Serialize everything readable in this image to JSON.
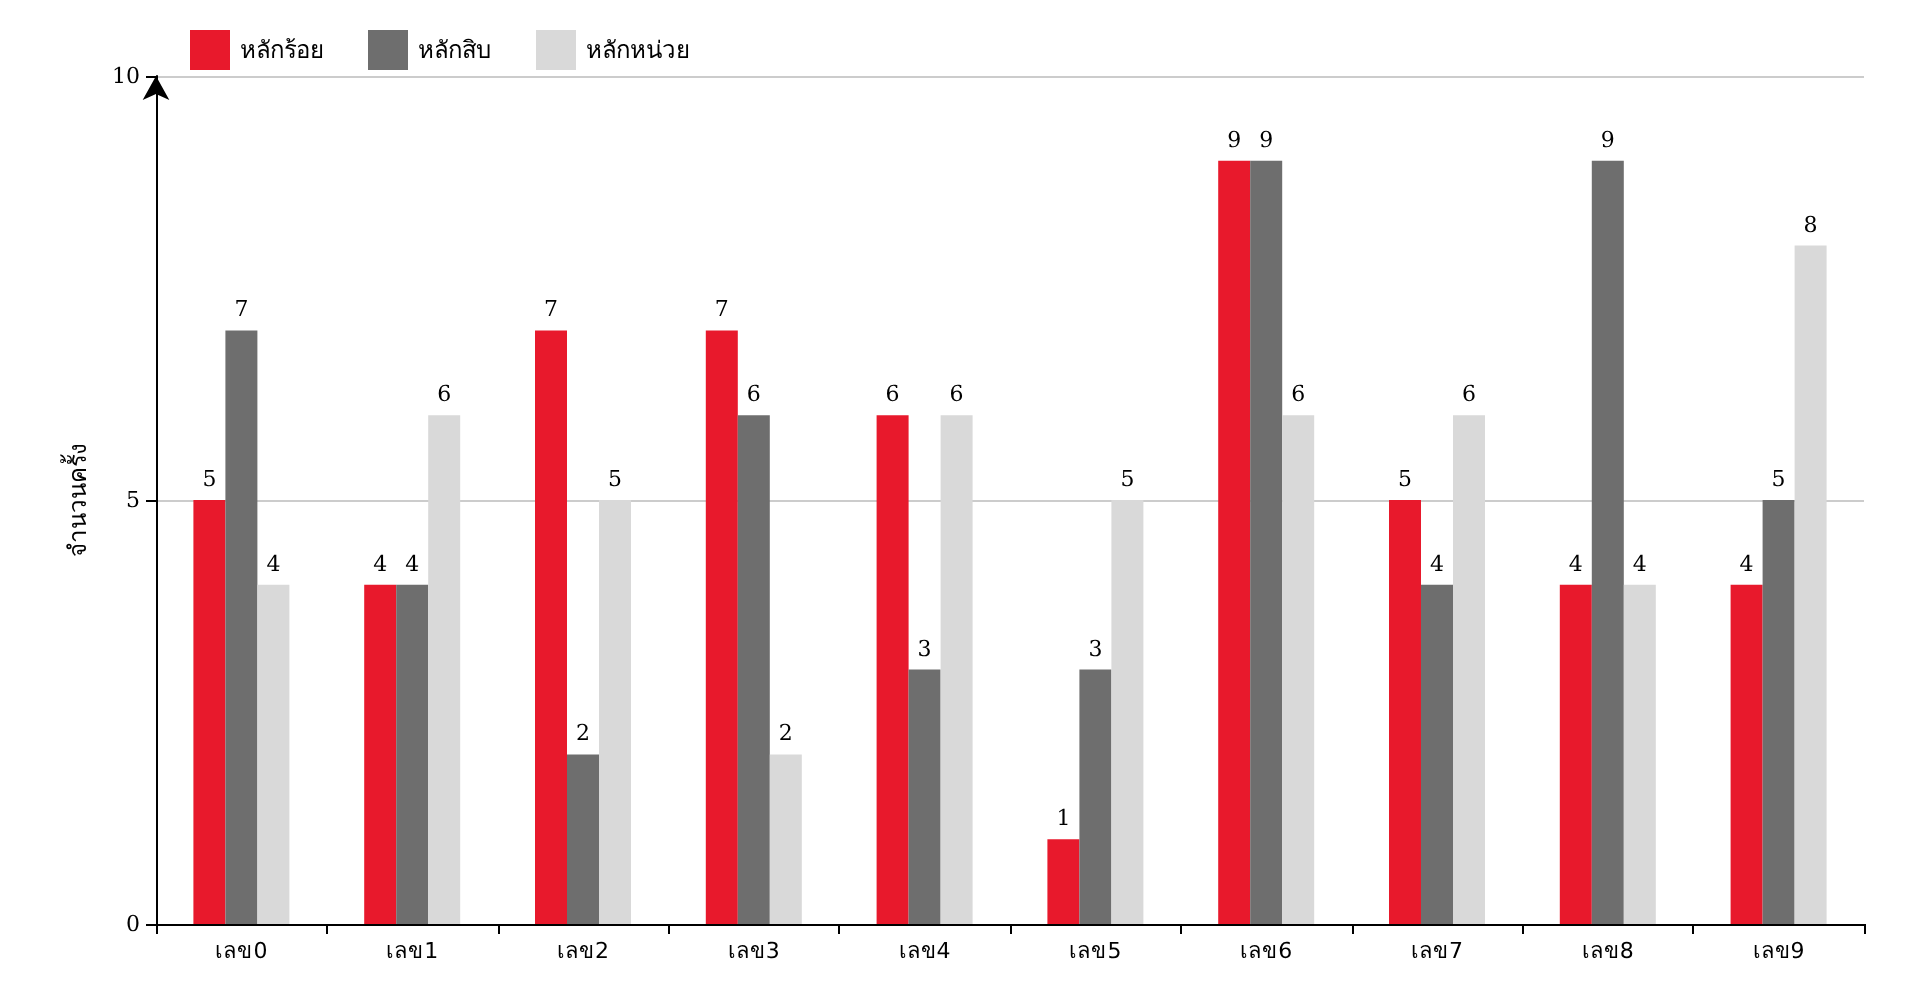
{
  "chart_data": {
    "type": "bar",
    "ylabel": "จำนวนครั้ง",
    "categories": [
      "เลข0",
      "เลข1",
      "เลข2",
      "เลข3",
      "เลข4",
      "เลข5",
      "เลข6",
      "เลข7",
      "เลข8",
      "เลข9"
    ],
    "series": [
      {
        "name": "หลักร้อย",
        "color": "#e8192c",
        "values": [
          5,
          4,
          7,
          7,
          6,
          1,
          9,
          5,
          4,
          4
        ]
      },
      {
        "name": "หลักสิบ",
        "color": "#6e6e6e",
        "values": [
          7,
          4,
          2,
          6,
          3,
          3,
          9,
          4,
          9,
          5
        ]
      },
      {
        "name": "หลักหน่วย",
        "color": "#d9d9d9",
        "values": [
          4,
          6,
          5,
          2,
          6,
          5,
          6,
          6,
          4,
          8
        ]
      }
    ],
    "ylim": [
      0,
      10
    ],
    "yticks": [
      0,
      5,
      10
    ],
    "grid": "y",
    "legend": "top left",
    "data_labels": true
  }
}
